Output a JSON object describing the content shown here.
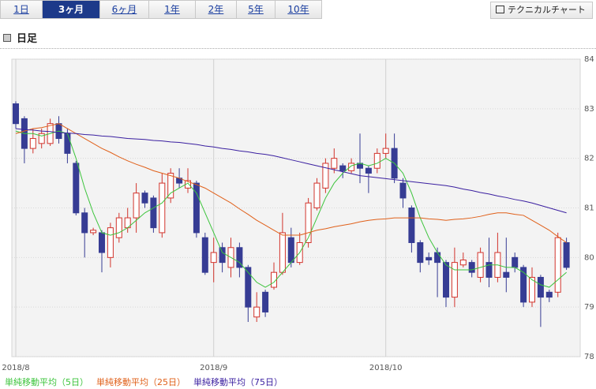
{
  "tabs": [
    "1日",
    "3ヶ月",
    "6ヶ月",
    "1年",
    "2年",
    "5年",
    "10年"
  ],
  "active_tab": 1,
  "button": "テクニカルチャート",
  "heading": "日足",
  "chart_data": {
    "type": "candlestick",
    "categories": [
      null,
      null,
      null,
      null,
      null,
      null,
      null,
      null,
      null,
      null,
      null,
      null,
      null,
      null,
      null,
      null,
      null,
      null,
      null,
      null,
      null,
      null,
      null,
      null,
      null,
      null,
      null,
      null,
      null,
      null,
      null,
      null,
      null,
      null,
      null,
      null,
      null,
      null,
      null,
      null,
      null,
      null,
      null,
      null,
      null,
      null,
      null,
      null,
      null,
      null,
      null,
      null,
      null,
      null,
      null,
      null,
      null,
      null,
      null,
      null,
      null,
      null,
      null,
      null,
      null
    ],
    "open": [
      83.1,
      82.8,
      82.2,
      82.3,
      82.3,
      82.7,
      82.5,
      81.9,
      80.9,
      80.5,
      80.5,
      80.0,
      80.4,
      80.6,
      80.8,
      81.3,
      81.2,
      80.5,
      81.2,
      81.6,
      81.4,
      81.5,
      80.4,
      79.9,
      80.2,
      79.8,
      80.2,
      79.8,
      78.8,
      79.3,
      79.4,
      79.7,
      80.4,
      79.9,
      80.3,
      81.0,
      81.4,
      81.8,
      81.85,
      81.75,
      81.9,
      81.8,
      81.8,
      82.1,
      82.2,
      81.5,
      81.0,
      80.3,
      80.0,
      80.1,
      79.9,
      79.2,
      79.85,
      79.9,
      79.6,
      79.9,
      79.6,
      79.7,
      80.0,
      79.8,
      79.1,
      79.6,
      79.3,
      79.3,
      80.3
    ],
    "high": [
      83.15,
      82.85,
      82.6,
      82.6,
      82.8,
      82.85,
      82.6,
      81.95,
      81.0,
      80.6,
      80.55,
      80.7,
      80.9,
      81.0,
      81.5,
      81.35,
      81.25,
      81.7,
      81.8,
      81.8,
      81.8,
      81.55,
      80.5,
      80.4,
      80.3,
      80.4,
      80.3,
      79.85,
      79.3,
      79.35,
      79.9,
      80.9,
      80.6,
      80.5,
      81.2,
      81.6,
      82.0,
      82.2,
      81.9,
      82.0,
      82.5,
      81.85,
      82.2,
      82.5,
      82.5,
      81.6,
      81.05,
      80.35,
      80.1,
      80.2,
      79.95,
      80.2,
      80.1,
      79.95,
      80.2,
      80.4,
      80.5,
      80.4,
      80.1,
      79.85,
      79.8,
      79.65,
      79.35,
      80.5,
      80.4
    ],
    "low": [
      82.6,
      81.9,
      82.1,
      82.2,
      82.25,
      82.3,
      81.9,
      80.85,
      80.0,
      80.45,
      79.7,
      79.8,
      80.3,
      80.5,
      80.5,
      81.0,
      80.5,
      80.4,
      81.1,
      81.4,
      81.3,
      80.4,
      79.65,
      79.5,
      79.7,
      79.6,
      79.6,
      78.7,
      78.7,
      78.8,
      79.35,
      79.65,
      79.8,
      79.85,
      80.2,
      80.95,
      81.3,
      81.7,
      81.6,
      81.7,
      81.5,
      81.3,
      81.7,
      82.0,
      81.5,
      81.0,
      80.1,
      79.7,
      79.85,
      79.2,
      79.0,
      79.0,
      79.8,
      79.6,
      79.5,
      79.4,
      79.5,
      79.3,
      79.7,
      79.0,
      79.0,
      78.6,
      79.1,
      79.2,
      79.75
    ],
    "close": [
      82.7,
      82.2,
      82.4,
      82.5,
      82.7,
      82.4,
      82.1,
      80.9,
      80.5,
      80.55,
      80.1,
      80.6,
      80.8,
      80.8,
      81.3,
      81.1,
      80.6,
      81.5,
      81.7,
      81.5,
      81.55,
      80.5,
      79.7,
      80.1,
      79.9,
      80.2,
      79.8,
      79.0,
      79.0,
      78.9,
      79.7,
      80.5,
      79.9,
      80.3,
      81.1,
      81.5,
      81.9,
      82.0,
      81.75,
      81.9,
      81.8,
      81.7,
      82.1,
      82.2,
      81.6,
      81.2,
      80.3,
      79.9,
      79.95,
      79.9,
      79.2,
      79.9,
      79.95,
      79.7,
      80.1,
      79.6,
      80.1,
      79.6,
      79.8,
      79.1,
      79.6,
      79.2,
      79.2,
      80.4,
      79.8
    ],
    "up_color": "#d2342c",
    "down_color": "#363c94",
    "series": [
      {
        "name": "単純移動平均（5日）",
        "color": "#3cc43c",
        "values": [
          82.55,
          82.5,
          82.5,
          82.45,
          82.5,
          82.55,
          82.5,
          82.0,
          81.4,
          80.9,
          80.5,
          80.45,
          80.5,
          80.6,
          80.75,
          80.9,
          81.0,
          81.1,
          81.3,
          81.4,
          81.5,
          81.3,
          80.9,
          80.5,
          80.1,
          80.0,
          79.9,
          79.7,
          79.5,
          79.4,
          79.5,
          79.7,
          79.9,
          80.1,
          80.4,
          80.8,
          81.2,
          81.5,
          81.7,
          81.85,
          81.9,
          81.85,
          81.9,
          82.0,
          81.9,
          81.7,
          81.3,
          80.8,
          80.4,
          80.1,
          79.85,
          79.75,
          79.75,
          79.75,
          79.8,
          79.85,
          79.85,
          79.8,
          79.8,
          79.7,
          79.55,
          79.45,
          79.4,
          79.55,
          79.7
        ]
      },
      {
        "name": "単純移動平均（25日）",
        "color": "#e0601a",
        "values": [
          82.5,
          82.55,
          82.6,
          82.62,
          82.66,
          82.7,
          82.6,
          82.5,
          82.4,
          82.3,
          82.2,
          82.12,
          82.03,
          81.95,
          81.88,
          81.82,
          81.75,
          81.7,
          81.65,
          81.6,
          81.53,
          81.47,
          81.4,
          81.3,
          81.2,
          81.1,
          80.98,
          80.87,
          80.75,
          80.65,
          80.55,
          80.45,
          80.45,
          80.45,
          80.5,
          80.55,
          80.58,
          80.62,
          80.65,
          80.68,
          80.72,
          80.75,
          80.77,
          80.78,
          80.8,
          80.8,
          80.8,
          80.8,
          80.78,
          80.77,
          80.75,
          80.77,
          80.78,
          80.8,
          80.83,
          80.87,
          80.9,
          80.9,
          80.87,
          80.85,
          80.75,
          80.65,
          80.55,
          80.42,
          80.3
        ]
      },
      {
        "name": "単純移動平均（75日）",
        "color": "#3a1fa0",
        "values": [
          82.6,
          82.58,
          82.57,
          82.55,
          82.54,
          82.52,
          82.51,
          82.5,
          82.48,
          82.47,
          82.45,
          82.44,
          82.42,
          82.4,
          82.39,
          82.38,
          82.36,
          82.35,
          82.33,
          82.32,
          82.3,
          82.28,
          82.25,
          82.23,
          82.2,
          82.18,
          82.15,
          82.13,
          82.1,
          82.08,
          82.05,
          82.01,
          81.97,
          81.93,
          81.89,
          81.85,
          81.81,
          81.77,
          81.73,
          81.69,
          81.65,
          81.63,
          81.61,
          81.59,
          81.57,
          81.55,
          81.53,
          81.51,
          81.49,
          81.47,
          81.45,
          81.42,
          81.38,
          81.35,
          81.31,
          81.28,
          81.24,
          81.21,
          81.17,
          81.14,
          81.1,
          81.05,
          81.0,
          80.95,
          80.9
        ]
      }
    ],
    "ylim": [
      78,
      84
    ],
    "yticks": [
      78,
      79,
      80,
      81,
      82,
      83,
      84
    ],
    "xticks": [
      {
        "value": 0,
        "label": "2018/8"
      },
      {
        "value": 23,
        "label": "2018/9"
      },
      {
        "value": 43,
        "label": "2018/10"
      }
    ],
    "grid": true
  }
}
